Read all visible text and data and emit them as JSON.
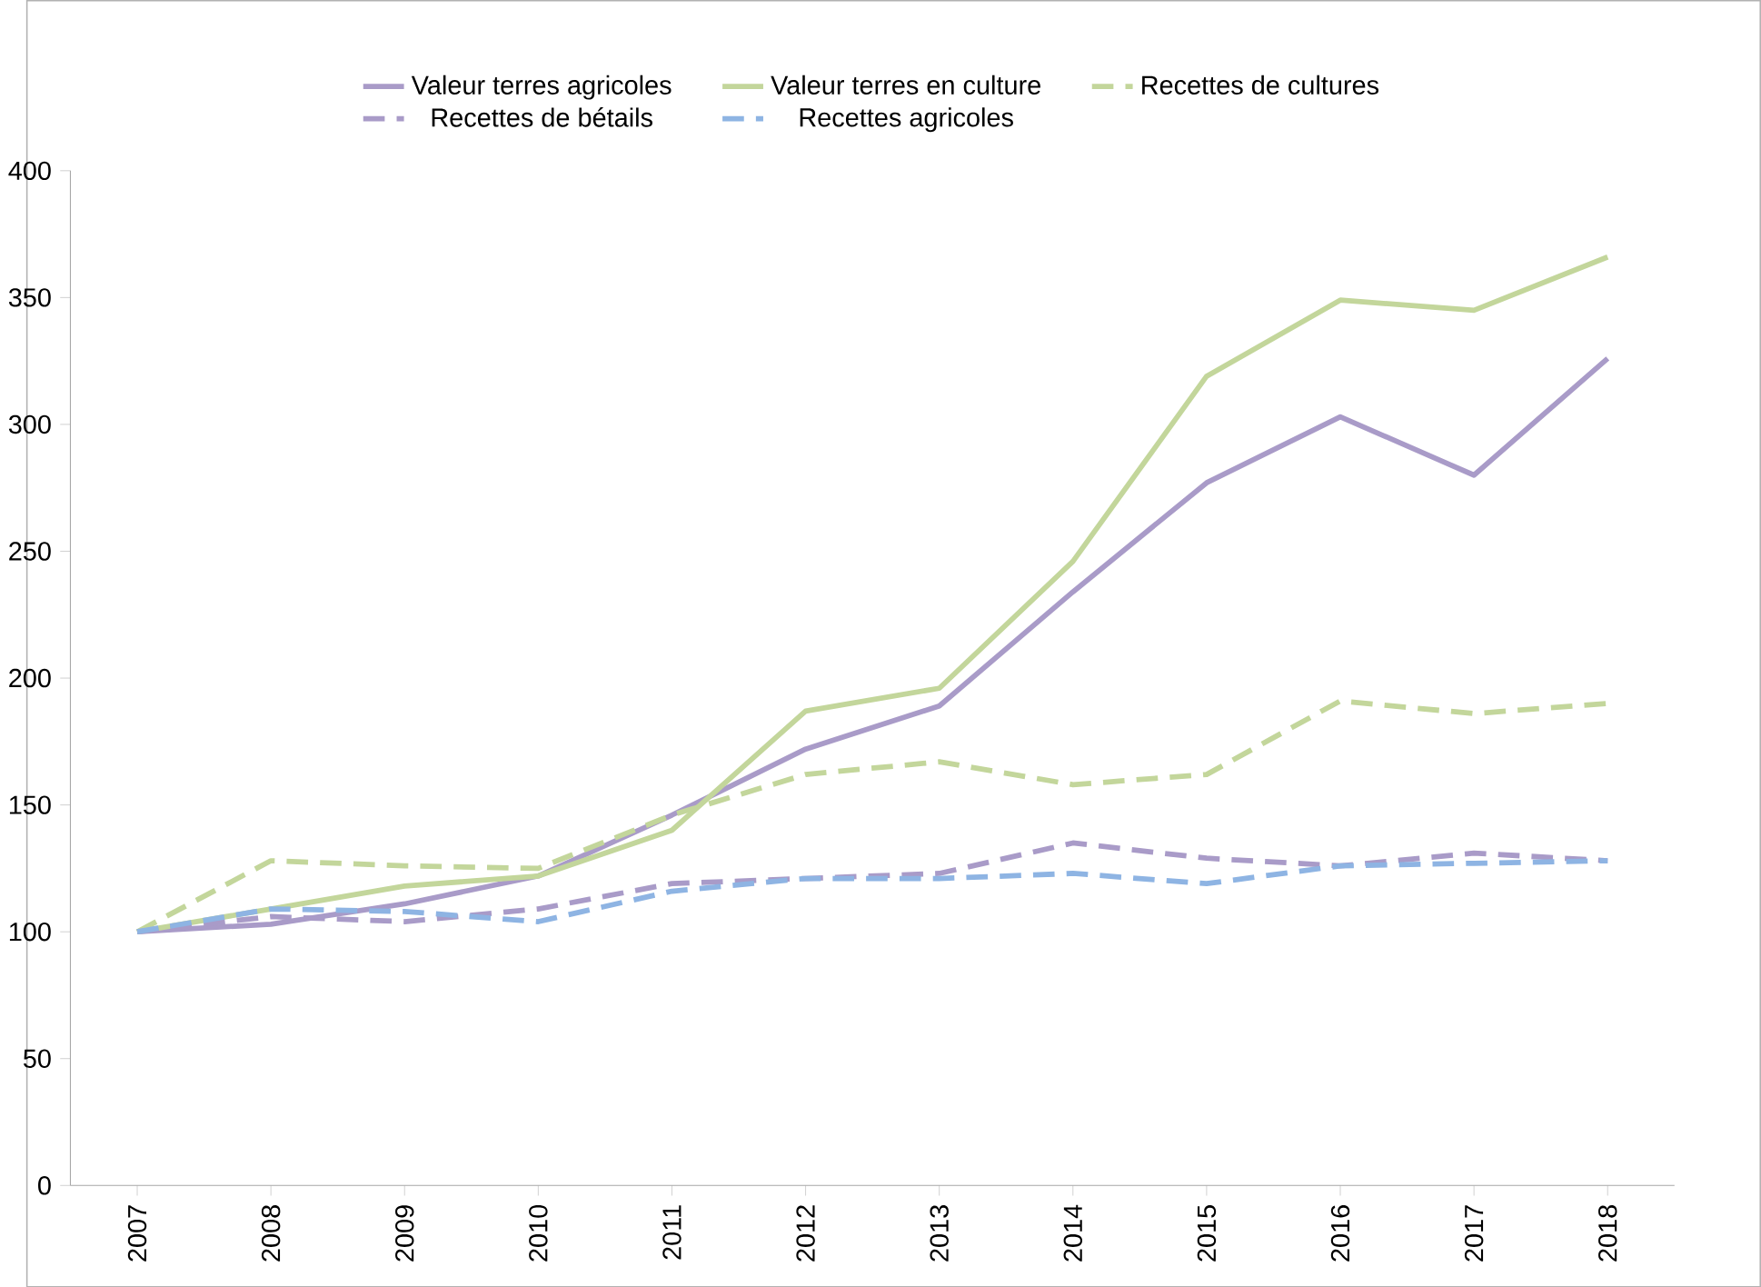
{
  "chart_data": {
    "type": "line",
    "categories": [
      "2007",
      "2008",
      "2009",
      "2010",
      "2011",
      "2012",
      "2013",
      "2014",
      "2015",
      "2016",
      "2017",
      "2018"
    ],
    "series": [
      {
        "name": "Valeur terres agricoles",
        "color": "#a99bc8",
        "line_style": "solid",
        "values": [
          100,
          103,
          111,
          122,
          146,
          172,
          189,
          234,
          277,
          303,
          280,
          326
        ]
      },
      {
        "name": "Valeur terres en culture",
        "color": "#c3d69b",
        "line_style": "solid",
        "values": [
          100,
          109,
          118,
          122,
          140,
          187,
          196,
          246,
          319,
          349,
          345,
          366
        ]
      },
      {
        "name": "Recettes de cultures",
        "color": "#c3d69b",
        "line_style": "dashed",
        "values": [
          100,
          128,
          126,
          125,
          146,
          162,
          167,
          158,
          162,
          191,
          186,
          190
        ]
      },
      {
        "name": "Recettes de bétails",
        "color": "#a99bc8",
        "line_style": "dashed",
        "values": [
          100,
          106,
          104,
          109,
          119,
          121,
          123,
          135,
          129,
          126,
          131,
          128
        ]
      },
      {
        "name": "Recettes agricoles",
        "color": "#8eb4e3",
        "line_style": "dashed",
        "values": [
          100,
          109,
          108,
          104,
          116,
          121,
          121,
          123,
          119,
          126,
          127,
          128
        ]
      }
    ],
    "ylim": [
      0,
      400
    ],
    "yticks": [
      0,
      50,
      100,
      150,
      200,
      250,
      300,
      350,
      400
    ],
    "grid": false,
    "legend": "top",
    "marker": "none"
  }
}
